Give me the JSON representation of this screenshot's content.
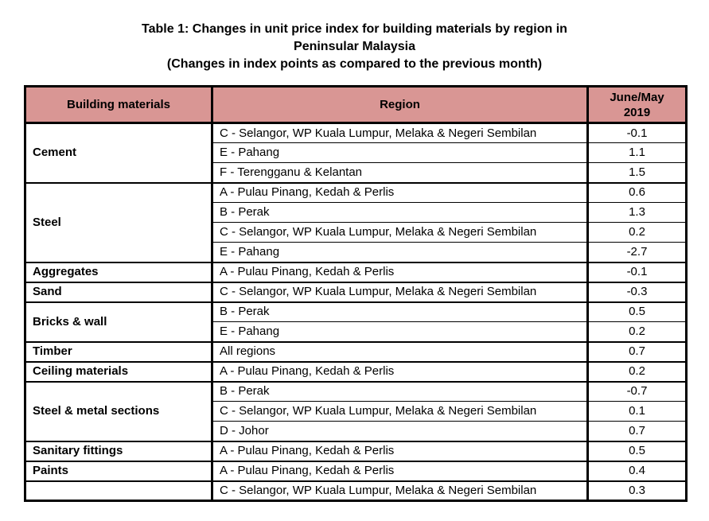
{
  "title": {
    "line1": "Table 1: Changes in unit price index for building materials by region in",
    "line2": "Peninsular Malaysia",
    "line3": "(Changes in index points as compared to the previous month)"
  },
  "colors": {
    "header_bg": "#d99694",
    "border": "#000000",
    "text": "#000000"
  },
  "table": {
    "columns": [
      {
        "key": "material",
        "label": "Building materials"
      },
      {
        "key": "region",
        "label": "Region"
      },
      {
        "key": "value",
        "label": "June/May 2019"
      }
    ],
    "groups": [
      {
        "material": "Cement",
        "rows": [
          {
            "region": "C - Selangor, WP Kuala Lumpur, Melaka & Negeri Sembilan",
            "value": "-0.1"
          },
          {
            "region": "E - Pahang",
            "value": "1.1"
          },
          {
            "region": "F - Terengganu & Kelantan",
            "value": "1.5"
          }
        ]
      },
      {
        "material": "Steel",
        "rows": [
          {
            "region": "A - Pulau Pinang, Kedah & Perlis",
            "value": "0.6"
          },
          {
            "region": "B - Perak",
            "value": "1.3"
          },
          {
            "region": "C - Selangor, WP Kuala Lumpur, Melaka & Negeri Sembilan",
            "value": "0.2"
          },
          {
            "region": "E - Pahang",
            "value": "-2.7"
          }
        ]
      },
      {
        "material": "Aggregates",
        "rows": [
          {
            "region": "A - Pulau Pinang, Kedah & Perlis",
            "value": "-0.1"
          }
        ]
      },
      {
        "material": "Sand",
        "rows": [
          {
            "region": "C - Selangor, WP Kuala Lumpur, Melaka & Negeri Sembilan",
            "value": "-0.3"
          }
        ]
      },
      {
        "material": "Bricks & wall",
        "rows": [
          {
            "region": "B - Perak",
            "value": "0.5"
          },
          {
            "region": "E - Pahang",
            "value": "0.2"
          }
        ]
      },
      {
        "material": "Timber",
        "rows": [
          {
            "region": "All regions",
            "value": "0.7"
          }
        ]
      },
      {
        "material": "Ceiling materials",
        "rows": [
          {
            "region": "A - Pulau Pinang, Kedah & Perlis",
            "value": "0.2"
          }
        ]
      },
      {
        "material": "Steel & metal sections",
        "rows": [
          {
            "region": "B - Perak",
            "value": "-0.7"
          },
          {
            "region": "C - Selangor, WP Kuala Lumpur, Melaka & Negeri Sembilan",
            "value": "0.1"
          },
          {
            "region": "D - Johor",
            "value": "0.7"
          }
        ]
      },
      {
        "material": "Sanitary fittings",
        "rows": [
          {
            "region": "A - Pulau Pinang, Kedah & Perlis",
            "value": "0.5"
          }
        ]
      },
      {
        "material": "Paints",
        "rows": [
          {
            "region": "A - Pulau Pinang, Kedah & Perlis",
            "value": "0.4"
          }
        ]
      },
      {
        "material": "",
        "rows": [
          {
            "region": "C - Selangor, WP Kuala Lumpur, Melaka & Negeri Sembilan",
            "value": "0.3"
          }
        ]
      }
    ]
  }
}
